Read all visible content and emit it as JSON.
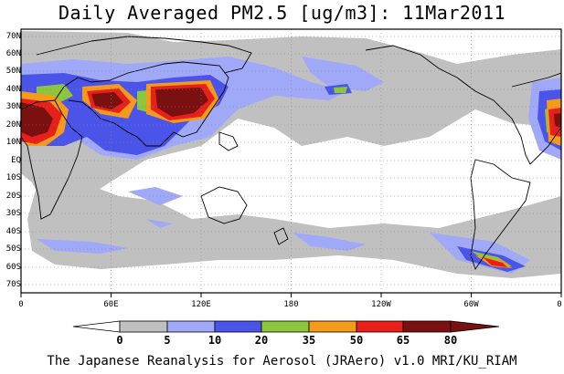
{
  "title": "Daily Averaged PM2.5 [ug/m3]: 11Mar2011",
  "credit": "The Japanese Reanalysis for Aerosol (JRAero) v1.0 MRI/KU_RIAM",
  "lat_labels": [
    "70N",
    "60N",
    "50N",
    "40N",
    "30N",
    "20N",
    "10N",
    "EQ",
    "10S",
    "20S",
    "30S",
    "40S",
    "50S",
    "60S",
    "70S"
  ],
  "lon_labels": [
    "0",
    "60E",
    "120E",
    "180",
    "120W",
    "60W",
    "0"
  ],
  "colorbar": {
    "ticks": [
      "0",
      "5",
      "10",
      "20",
      "35",
      "50",
      "65",
      "80"
    ],
    "colors": [
      "#ffffff",
      "#c0c0c0",
      "#a0a8f8",
      "#4a54e8",
      "#8cc63c",
      "#f59a1a",
      "#e8201c",
      "#7a1010"
    ]
  }
}
